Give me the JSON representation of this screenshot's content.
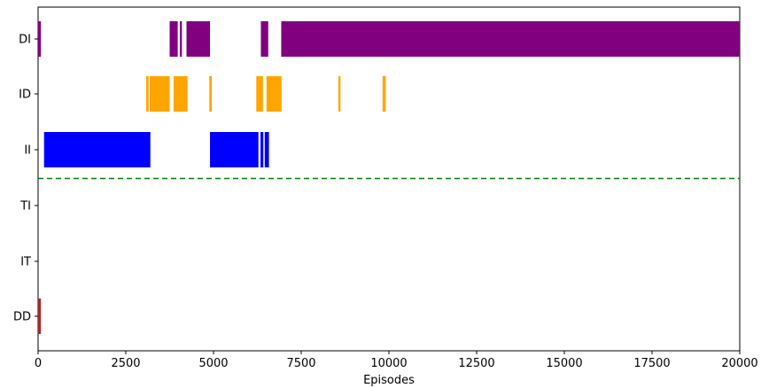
{
  "chart_data": {
    "type": "bar",
    "subtype": "broken-barh timeline",
    "xlabel": "Episodes",
    "ylabel": "",
    "title": "",
    "xlim": [
      0,
      20000
    ],
    "xticks": [
      0,
      2500,
      5000,
      7500,
      10000,
      12500,
      15000,
      17500,
      20000
    ],
    "categories": [
      "DI",
      "ID",
      "II",
      "TI",
      "IT",
      "DD"
    ],
    "grid": false,
    "reference_line": {
      "style": "dashed",
      "color": "#008000",
      "between": [
        "II",
        "TI"
      ]
    },
    "series": [
      {
        "category": "DI",
        "color": "#800080",
        "intervals": [
          [
            0,
            80
          ],
          [
            3750,
            3980
          ],
          [
            4040,
            4100
          ],
          [
            4230,
            4900
          ],
          [
            6350,
            6560
          ],
          [
            6930,
            20000
          ]
        ]
      },
      {
        "category": "ID",
        "color": "#FFA500",
        "intervals": [
          [
            3080,
            3150
          ],
          [
            3180,
            3750
          ],
          [
            3860,
            4260
          ],
          [
            4880,
            4950
          ],
          [
            6220,
            6410
          ],
          [
            6510,
            6940
          ],
          [
            8560,
            8620
          ],
          [
            9820,
            9910
          ]
        ]
      },
      {
        "category": "II",
        "color": "#0000FF",
        "intervals": [
          [
            170,
            3200
          ],
          [
            4900,
            6280
          ],
          [
            6340,
            6420
          ],
          [
            6460,
            6580
          ]
        ]
      },
      {
        "category": "TI",
        "color": "#000000",
        "intervals": []
      },
      {
        "category": "IT",
        "color": "#000000",
        "intervals": []
      },
      {
        "category": "DD",
        "color": "#A52A2A",
        "intervals": [
          [
            0,
            80
          ]
        ]
      }
    ]
  }
}
